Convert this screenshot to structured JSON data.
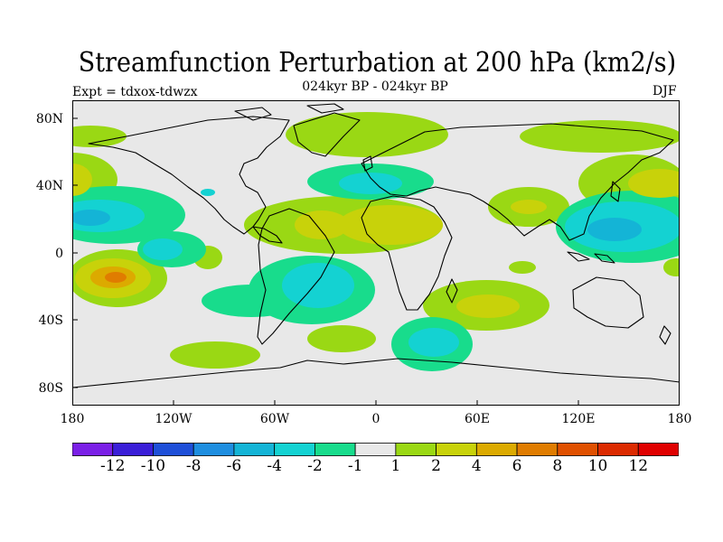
{
  "title": "Streamfunction Perturbation at 200 hPa (km2/s)",
  "subtitle": "024kyr BP - 024kyr BP",
  "experiment": "Expt = tdxox-tdwzx",
  "season": "DJF",
  "lat_labels": [
    "80N",
    "40N",
    "0",
    "40S",
    "80S"
  ],
  "lon_labels": [
    "180",
    "120W",
    "60W",
    "0",
    "60E",
    "120E",
    "180"
  ],
  "colorbar": {
    "labels": [
      "-12",
      "-10",
      "-8",
      "-6",
      "-4",
      "-2",
      "-1",
      "1",
      "2",
      "4",
      "6",
      "8",
      "10",
      "12"
    ],
    "colors": [
      "#7a1fe6",
      "#3a1ed8",
      "#1e4fd8",
      "#1e8ee0",
      "#14b4d6",
      "#14d2d2",
      "#18dc8c",
      "#e8e8e8",
      "#9ad814",
      "#c8d20a",
      "#dcaa00",
      "#e07c00",
      "#e05000",
      "#dc2a00",
      "#e00000"
    ]
  },
  "map_colors": {
    "background": "#e8e8e8",
    "coast": "#000000"
  }
}
